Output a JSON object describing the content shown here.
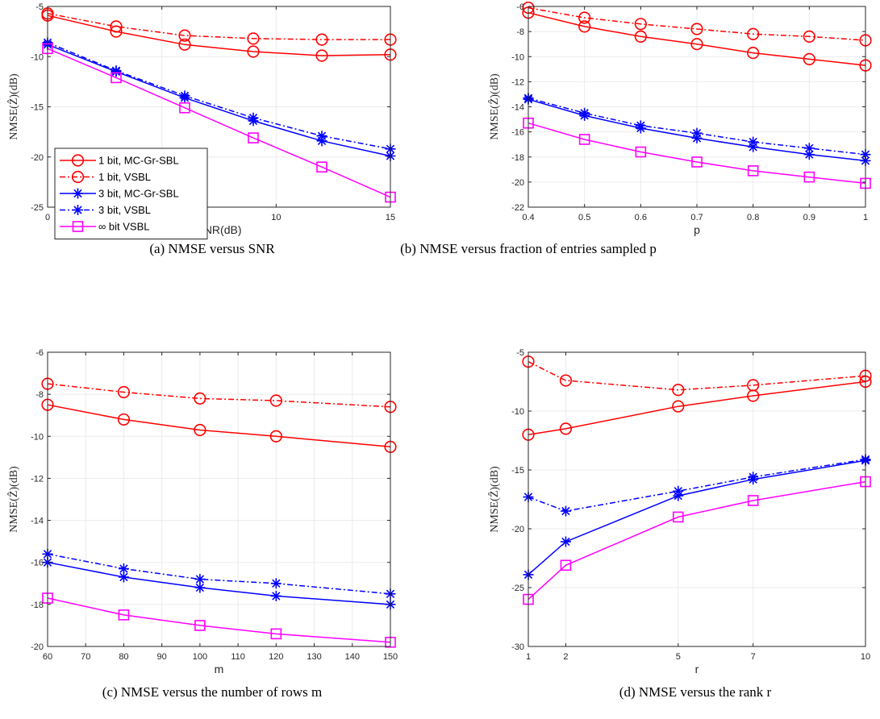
{
  "chart_data": [
    {
      "type": "line",
      "caption": "(a) NMSE versus SNR",
      "xlabel": "SNR(dB)",
      "ylabel": "NMSE(Ẑ)(dB)",
      "xlim": [
        0,
        15
      ],
      "ylim": [
        -25,
        -5
      ],
      "xticks": [
        0,
        5,
        10,
        15
      ],
      "yticks": [
        -25,
        -20,
        -15,
        -10,
        -5
      ],
      "legend": "bottom-left",
      "x": [
        0,
        3,
        6,
        9,
        12,
        15
      ],
      "series": [
        {
          "name": "1 bit, MC-Gr-SBL",
          "style": "red-solid-circle",
          "values": [
            -5.9,
            -7.5,
            -8.8,
            -9.5,
            -9.9,
            -9.8
          ]
        },
        {
          "name": "1 bit, VSBL",
          "style": "red-dash-circle",
          "values": [
            -5.7,
            -7.0,
            -7.9,
            -8.2,
            -8.3,
            -8.3
          ]
        },
        {
          "name": "3 bit, MC-Gr-SBL",
          "style": "blue-solid-star",
          "values": [
            -8.8,
            -11.5,
            -14.1,
            -16.4,
            -18.4,
            -19.9
          ]
        },
        {
          "name": "3 bit, VSBL",
          "style": "blue-dash-star",
          "values": [
            -8.6,
            -11.4,
            -13.9,
            -16.1,
            -17.9,
            -19.2
          ]
        },
        {
          "name": "∞ bit VSBL",
          "style": "magenta-solid-square",
          "values": [
            -9.2,
            -12.1,
            -15.1,
            -18.1,
            -21.0,
            -24.0
          ]
        }
      ]
    },
    {
      "type": "line",
      "caption": "(b) NMSE versus fraction of entries sampled p",
      "xlabel": "p",
      "ylabel": "NMSE(Ẑ)(dB)",
      "xlim": [
        0.4,
        1
      ],
      "ylim": [
        -22,
        -6
      ],
      "xticks": [
        0.4,
        0.5,
        0.6,
        0.7,
        0.8,
        0.9,
        1
      ],
      "yticks": [
        -22,
        -20,
        -18,
        -16,
        -14,
        -12,
        -10,
        -8,
        -6
      ],
      "x": [
        0.4,
        0.5,
        0.6,
        0.7,
        0.8,
        0.9,
        1.0
      ],
      "series": [
        {
          "style": "red-solid-circle",
          "values": [
            -6.5,
            -7.6,
            -8.4,
            -9.0,
            -9.7,
            -10.2,
            -10.7
          ]
        },
        {
          "style": "red-dash-circle",
          "values": [
            -6.1,
            -6.9,
            -7.4,
            -7.8,
            -8.2,
            -8.4,
            -8.7
          ]
        },
        {
          "style": "blue-solid-star",
          "values": [
            -13.4,
            -14.7,
            -15.7,
            -16.5,
            -17.2,
            -17.8,
            -18.3
          ]
        },
        {
          "style": "blue-dash-star",
          "values": [
            -13.3,
            -14.5,
            -15.5,
            -16.1,
            -16.8,
            -17.3,
            -17.8
          ]
        },
        {
          "style": "magenta-solid-square",
          "values": [
            -15.3,
            -16.6,
            -17.6,
            -18.4,
            -19.1,
            -19.6,
            -20.1
          ]
        }
      ]
    },
    {
      "type": "line",
      "caption": "(c) NMSE versus the number of rows m",
      "xlabel": "m",
      "ylabel": "NMSE(Ẑ)(dB)",
      "xlim": [
        60,
        150
      ],
      "ylim": [
        -20,
        -6
      ],
      "xticks": [
        60,
        70,
        80,
        90,
        100,
        110,
        120,
        130,
        140,
        150
      ],
      "yticks": [
        -20,
        -18,
        -16,
        -14,
        -12,
        -10,
        -8,
        -6
      ],
      "x": [
        60,
        80,
        100,
        120,
        150
      ],
      "series": [
        {
          "style": "red-solid-circle",
          "values": [
            -8.5,
            -9.2,
            -9.7,
            -10.0,
            -10.5
          ]
        },
        {
          "style": "red-dash-circle",
          "values": [
            -7.5,
            -7.9,
            -8.2,
            -8.3,
            -8.6
          ]
        },
        {
          "style": "blue-solid-star",
          "values": [
            -16.0,
            -16.7,
            -17.2,
            -17.6,
            -18.0
          ]
        },
        {
          "style": "blue-dash-star",
          "values": [
            -15.6,
            -16.3,
            -16.8,
            -17.0,
            -17.5
          ]
        },
        {
          "style": "magenta-solid-square",
          "values": [
            -17.7,
            -18.5,
            -19.0,
            -19.4,
            -19.8
          ]
        }
      ]
    },
    {
      "type": "line",
      "caption": "(d) NMSE versus the rank r",
      "xlabel": "r",
      "ylabel": "NMSE(Ẑ)(dB)",
      "xlim": [
        1,
        10
      ],
      "ylim": [
        -30,
        -5
      ],
      "xticks": [
        1,
        2,
        5,
        7,
        10
      ],
      "yticks": [
        -30,
        -25,
        -20,
        -15,
        -10,
        -5
      ],
      "x": [
        1,
        2,
        5,
        7,
        10
      ],
      "series": [
        {
          "style": "red-solid-circle",
          "values": [
            -12.0,
            -11.5,
            -9.6,
            -8.7,
            -7.5
          ]
        },
        {
          "style": "red-dash-circle",
          "values": [
            -5.8,
            -7.4,
            -8.2,
            -7.8,
            -7.0
          ]
        },
        {
          "style": "blue-solid-star",
          "values": [
            -23.9,
            -21.1,
            -17.2,
            -15.8,
            -14.2
          ]
        },
        {
          "style": "blue-dash-star",
          "values": [
            -17.3,
            -18.5,
            -16.8,
            -15.6,
            -14.1
          ]
        },
        {
          "style": "magenta-solid-square",
          "values": [
            -26.0,
            -23.1,
            -19.0,
            -17.6,
            -16.0
          ]
        }
      ]
    }
  ],
  "colors": {
    "red": "#ff0000",
    "blue": "#0000ff",
    "magenta": "#ff00ff",
    "axis": "#262626",
    "grid": "#ebebeb"
  }
}
